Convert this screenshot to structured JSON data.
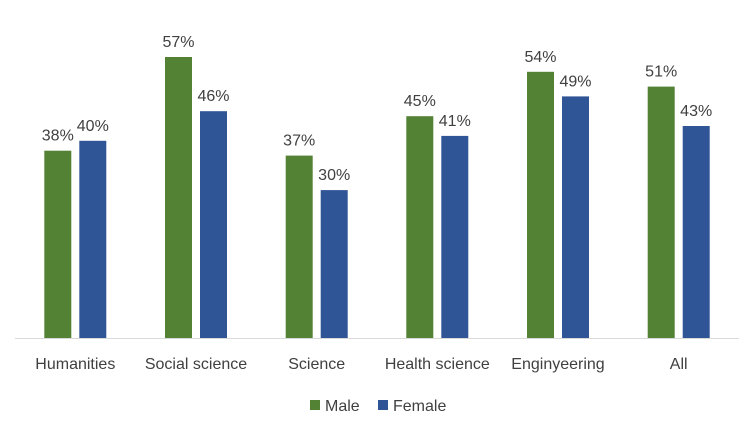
{
  "chart_data": {
    "type": "bar",
    "title": "",
    "xlabel": "",
    "ylabel": "",
    "ylim": [
      0,
      60
    ],
    "grid": false,
    "legend_position": "bottom",
    "categories": [
      "Humanities",
      "Social science",
      "Science",
      "Health science",
      "Enginyeering",
      "All"
    ],
    "series": [
      {
        "name": "Male",
        "color": "#548235",
        "values": [
          38,
          57,
          37,
          45,
          54,
          51
        ],
        "labels": [
          "38%",
          "57%",
          "37%",
          "45%",
          "54%",
          "51%"
        ]
      },
      {
        "name": "Female",
        "color": "#2F5597",
        "values": [
          40,
          46,
          30,
          41,
          49,
          43
        ],
        "labels": [
          "40%",
          "46%",
          "30%",
          "41%",
          "49%",
          "43%"
        ]
      }
    ],
    "axis_color": "#d9d9d9"
  }
}
